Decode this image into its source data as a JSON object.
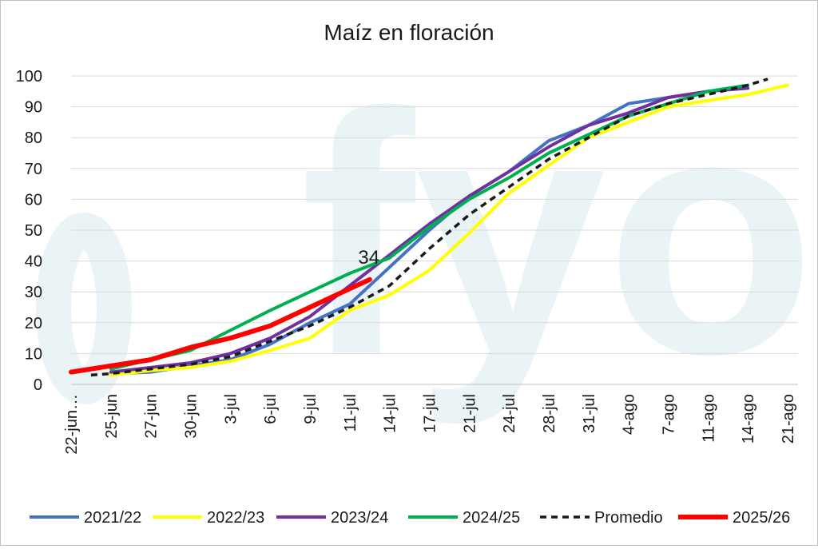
{
  "chart_data": {
    "type": "line",
    "title": "Maíz en floración",
    "watermark": "fyo",
    "categories": [
      "22-jun…",
      "25-jun",
      "27-jun",
      "30-jun",
      "3-jul",
      "6-jul",
      "9-jul",
      "11-jul",
      "14-jul",
      "17-jul",
      "21-jul",
      "24-jul",
      "28-jul",
      "31-jul",
      "4-ago",
      "7-ago",
      "11-ago",
      "14-ago",
      "21-ago"
    ],
    "ylim": [
      0,
      100
    ],
    "yticks": [
      0,
      10,
      20,
      30,
      40,
      50,
      60,
      70,
      80,
      90,
      100
    ],
    "grid": true,
    "legend_position": "bottom",
    "series": [
      {
        "name": "2021/22",
        "color": "#4472c4",
        "dash": "solid",
        "width": 4,
        "points": [
          [
            1,
            3.5
          ],
          [
            2,
            4
          ],
          [
            3,
            6
          ],
          [
            4,
            8
          ],
          [
            5,
            13
          ],
          [
            6,
            20
          ],
          [
            7,
            26
          ],
          [
            8,
            38
          ],
          [
            9,
            50
          ],
          [
            10,
            61
          ],
          [
            11,
            69
          ],
          [
            12,
            79
          ],
          [
            13,
            84
          ],
          [
            14,
            91
          ],
          [
            15,
            93
          ],
          [
            16,
            95
          ]
        ]
      },
      {
        "name": "2022/23",
        "color": "#ffff00",
        "dash": "solid",
        "width": 4,
        "points": [
          [
            1,
            3
          ],
          [
            2,
            4.5
          ],
          [
            3,
            5.5
          ],
          [
            4,
            7.5
          ],
          [
            5,
            11
          ],
          [
            6,
            15
          ],
          [
            7,
            24
          ],
          [
            8,
            29
          ],
          [
            9,
            37
          ],
          [
            10,
            49
          ],
          [
            11,
            62
          ],
          [
            12,
            71
          ],
          [
            13,
            80
          ],
          [
            14,
            85
          ],
          [
            15,
            90
          ],
          [
            16,
            92
          ],
          [
            17,
            94
          ],
          [
            18,
            97
          ]
        ]
      },
      {
        "name": "2023/24",
        "color": "#7030a0",
        "dash": "solid",
        "width": 4,
        "points": [
          [
            1,
            4
          ],
          [
            2,
            5.5
          ],
          [
            3,
            7
          ],
          [
            4,
            10
          ],
          [
            5,
            15
          ],
          [
            6,
            22
          ],
          [
            7,
            32
          ],
          [
            8,
            42
          ],
          [
            9,
            52
          ],
          [
            10,
            61
          ],
          [
            11,
            69
          ],
          [
            12,
            77
          ],
          [
            13,
            84
          ],
          [
            14,
            88
          ],
          [
            15,
            93
          ],
          [
            16,
            95
          ],
          [
            17,
            96
          ]
        ]
      },
      {
        "name": "2024/25",
        "color": "#00b050",
        "dash": "solid",
        "width": 4,
        "points": [
          [
            1,
            5
          ],
          [
            2,
            8
          ],
          [
            3,
            11
          ],
          [
            4,
            17.5
          ],
          [
            5,
            24
          ],
          [
            6,
            30
          ],
          [
            7,
            36
          ],
          [
            8,
            41
          ],
          [
            9,
            51
          ],
          [
            10,
            60
          ],
          [
            11,
            67
          ],
          [
            12,
            75
          ],
          [
            13,
            81
          ],
          [
            14,
            87
          ],
          [
            15,
            91
          ],
          [
            16,
            95
          ],
          [
            17,
            97
          ]
        ]
      },
      {
        "name": "Promedio",
        "color": "#1a1a1a",
        "dash": "dashed",
        "width": 3.5,
        "points": [
          [
            0.5,
            3
          ],
          [
            1,
            3.5
          ],
          [
            2,
            5
          ],
          [
            3,
            6.5
          ],
          [
            4,
            9
          ],
          [
            5,
            14
          ],
          [
            6,
            19
          ],
          [
            7,
            25
          ],
          [
            8,
            32
          ],
          [
            9,
            44
          ],
          [
            10,
            55
          ],
          [
            11,
            64
          ],
          [
            12,
            73
          ],
          [
            13,
            80
          ],
          [
            14,
            87
          ],
          [
            15,
            91
          ],
          [
            16,
            94
          ],
          [
            17,
            97
          ],
          [
            17.5,
            99
          ]
        ]
      },
      {
        "name": "2025/26",
        "color": "#ff0000",
        "dash": "solid",
        "width": 6,
        "points": [
          [
            0,
            4
          ],
          [
            1,
            6
          ],
          [
            2,
            8
          ],
          [
            3,
            12
          ],
          [
            4,
            15
          ],
          [
            5,
            19
          ],
          [
            6,
            25
          ],
          [
            7,
            31
          ],
          [
            7.5,
            34
          ]
        ]
      }
    ],
    "annotations": [
      {
        "text": "34",
        "series": "2025/26",
        "x": 7.5,
        "y": 34
      }
    ]
  }
}
